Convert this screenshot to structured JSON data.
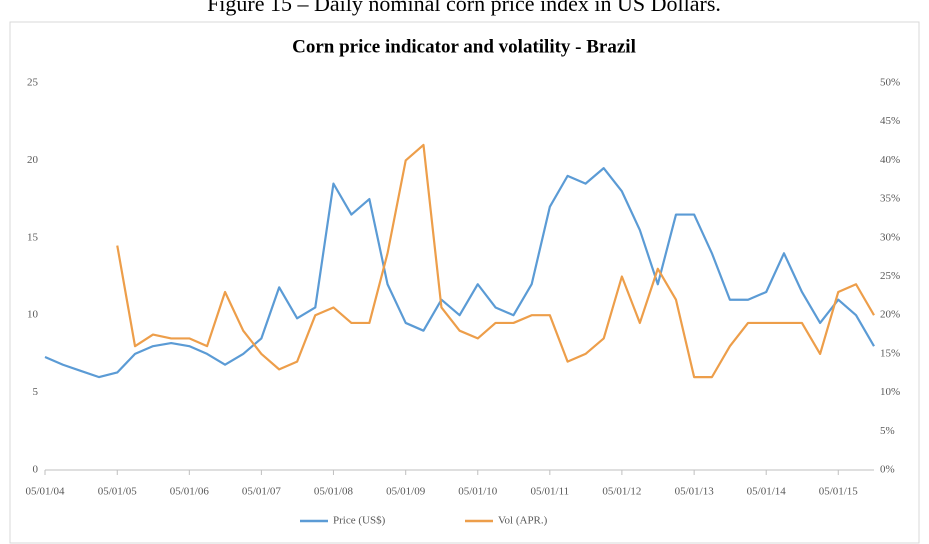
{
  "caption": "Figure 15 – Daily nominal corn price index in US Dollars.",
  "chart_data": {
    "type": "line",
    "title": "Corn price indicator and volatility - Brazil",
    "x": [
      "05/01/04",
      "05/04/04",
      "05/07/04",
      "05/10/04",
      "05/01/05",
      "05/04/05",
      "05/07/05",
      "05/10/05",
      "05/01/06",
      "05/04/06",
      "05/07/06",
      "05/10/06",
      "05/01/07",
      "05/04/07",
      "05/07/07",
      "05/10/07",
      "05/01/08",
      "05/04/08",
      "05/07/08",
      "05/10/08",
      "05/01/09",
      "05/04/09",
      "05/07/09",
      "05/10/09",
      "05/01/10",
      "05/04/10",
      "05/07/10",
      "05/10/10",
      "05/01/11",
      "05/04/11",
      "05/07/11",
      "05/10/11",
      "05/01/12",
      "05/04/12",
      "05/07/12",
      "05/10/12",
      "05/01/13",
      "05/04/13",
      "05/07/13",
      "05/10/13",
      "05/01/14",
      "05/04/14",
      "05/07/14",
      "05/10/14",
      "05/01/15",
      "05/04/15",
      "05/07/15"
    ],
    "series": [
      {
        "name": "Price (US$)",
        "color": "#5b9bd5",
        "values": [
          7.3,
          6.8,
          6.4,
          6.0,
          6.3,
          7.5,
          8.0,
          8.2,
          8.0,
          7.5,
          6.8,
          7.5,
          8.5,
          11.8,
          9.8,
          10.5,
          18.5,
          16.5,
          17.5,
          12.0,
          9.5,
          9.0,
          11.0,
          10.0,
          12.0,
          10.5,
          10.0,
          12.0,
          17.0,
          19.0,
          18.5,
          19.5,
          18.0,
          15.5,
          12.0,
          16.5,
          16.5,
          14.0,
          11.0,
          11.0,
          11.5,
          14.0,
          11.5,
          9.5,
          11.0,
          10.0,
          8.0
        ]
      },
      {
        "name": "Vol (APR.)",
        "color": "#ed9e4a",
        "axis": "y2",
        "values": [
          null,
          null,
          null,
          null,
          29,
          16,
          17.5,
          17,
          17,
          16,
          23,
          18,
          15,
          13,
          14,
          20,
          21,
          19,
          19,
          28,
          40,
          42,
          21,
          18,
          17,
          19,
          19,
          20,
          20,
          14,
          15,
          17,
          25,
          19,
          26,
          22,
          12,
          12,
          16,
          19,
          19,
          19,
          19,
          15,
          23,
          24,
          20
        ]
      }
    ],
    "xticks": [
      "05/01/04",
      "05/01/05",
      "05/01/06",
      "05/01/07",
      "05/01/08",
      "05/01/09",
      "05/01/10",
      "05/01/11",
      "05/01/12",
      "05/01/13",
      "05/01/14",
      "05/01/15"
    ],
    "xlim": [
      "05/01/04",
      "05/07/15"
    ],
    "ylim": [
      0,
      25
    ],
    "yticks": [
      0,
      5,
      10,
      15,
      20,
      25
    ],
    "y2lim": [
      0,
      50
    ],
    "y2ticks": [
      {
        "value": 0,
        "label": "0%"
      },
      {
        "value": 5,
        "label": "5%"
      },
      {
        "value": 10,
        "label": "10%"
      },
      {
        "value": 15,
        "label": "15%"
      },
      {
        "value": 20,
        "label": "20%"
      },
      {
        "value": 25,
        "label": "25%"
      },
      {
        "value": 30,
        "label": "30%"
      },
      {
        "value": 35,
        "label": "35%"
      },
      {
        "value": 40,
        "label": "40%"
      },
      {
        "value": 45,
        "label": "45%"
      },
      {
        "value": 50,
        "label": "50%"
      }
    ],
    "legend": "bottom"
  }
}
